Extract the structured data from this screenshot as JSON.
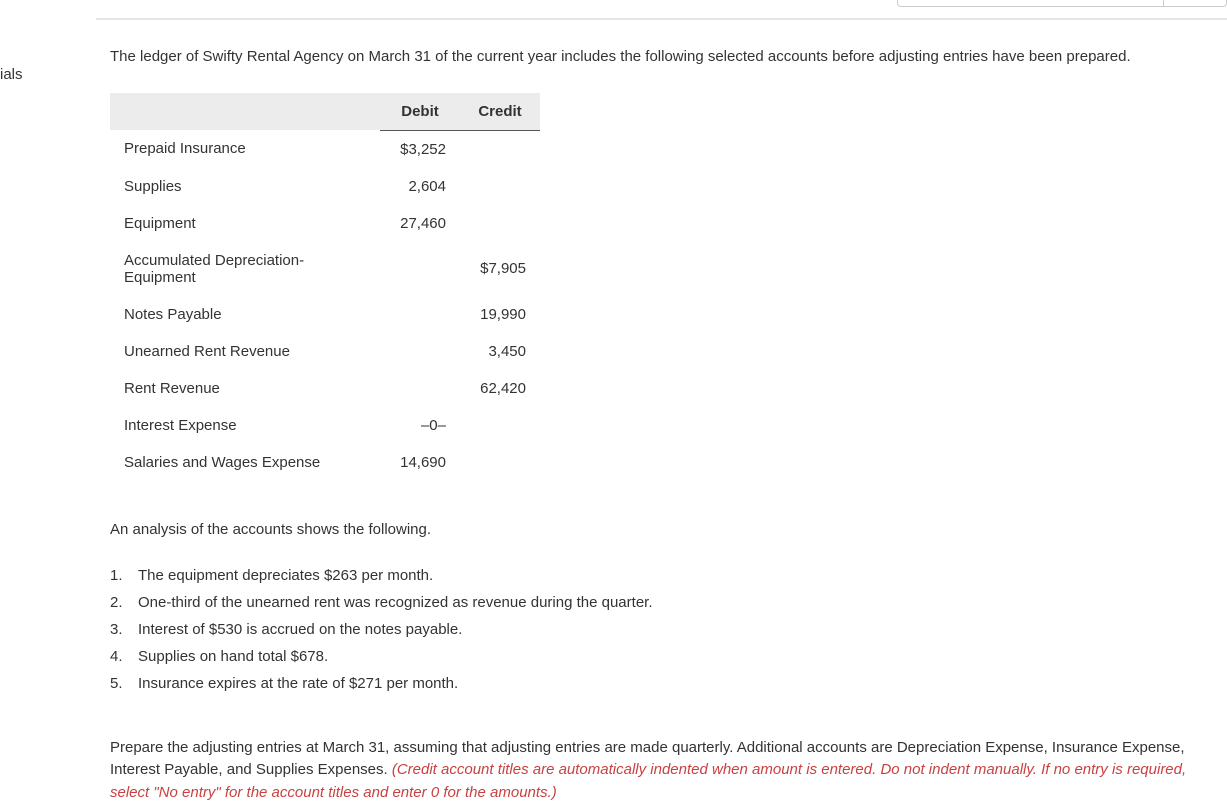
{
  "sidebar": {
    "fragment": "ials"
  },
  "intro": "The ledger of Swifty Rental Agency on March 31 of the current year includes the following selected accounts before adjusting entries have been prepared.",
  "table": {
    "headers": {
      "debit": "Debit",
      "credit": "Credit"
    },
    "rows": [
      {
        "account": "Prepaid Insurance",
        "debit": "$3,252",
        "credit": ""
      },
      {
        "account": "Supplies",
        "debit": "2,604",
        "credit": ""
      },
      {
        "account": "Equipment",
        "debit": "27,460",
        "credit": ""
      },
      {
        "account": "Accumulated Depreciation-Equipment",
        "debit": "",
        "credit": "$7,905"
      },
      {
        "account": "Notes Payable",
        "debit": "",
        "credit": "19,990"
      },
      {
        "account": "Unearned Rent Revenue",
        "debit": "",
        "credit": "3,450"
      },
      {
        "account": "Rent Revenue",
        "debit": "",
        "credit": "62,420"
      },
      {
        "account": "Interest Expense",
        "debit": "–0–",
        "credit": ""
      },
      {
        "account": "Salaries and Wages Expense",
        "debit": "14,690",
        "credit": ""
      }
    ]
  },
  "analysis_intro": "An analysis of the accounts shows the following.",
  "analysis": [
    "The equipment depreciates $263 per month.",
    "One-third of the unearned rent was recognized as revenue during the quarter.",
    "Interest of $530 is accrued on the notes payable.",
    "Supplies on hand total $678.",
    "Insurance expires at the rate of $271 per month."
  ],
  "instructions": {
    "main": "Prepare the adjusting entries at March 31, assuming that adjusting entries are made quarterly. Additional accounts are Depreciation Expense, Insurance Expense, Interest Payable, and Supplies Expenses. ",
    "hint": "(Credit account titles are automatically indented when amount is entered. Do not indent manually. If no entry is required, select \"No entry\" for the account titles and enter 0 for the amounts.)"
  }
}
